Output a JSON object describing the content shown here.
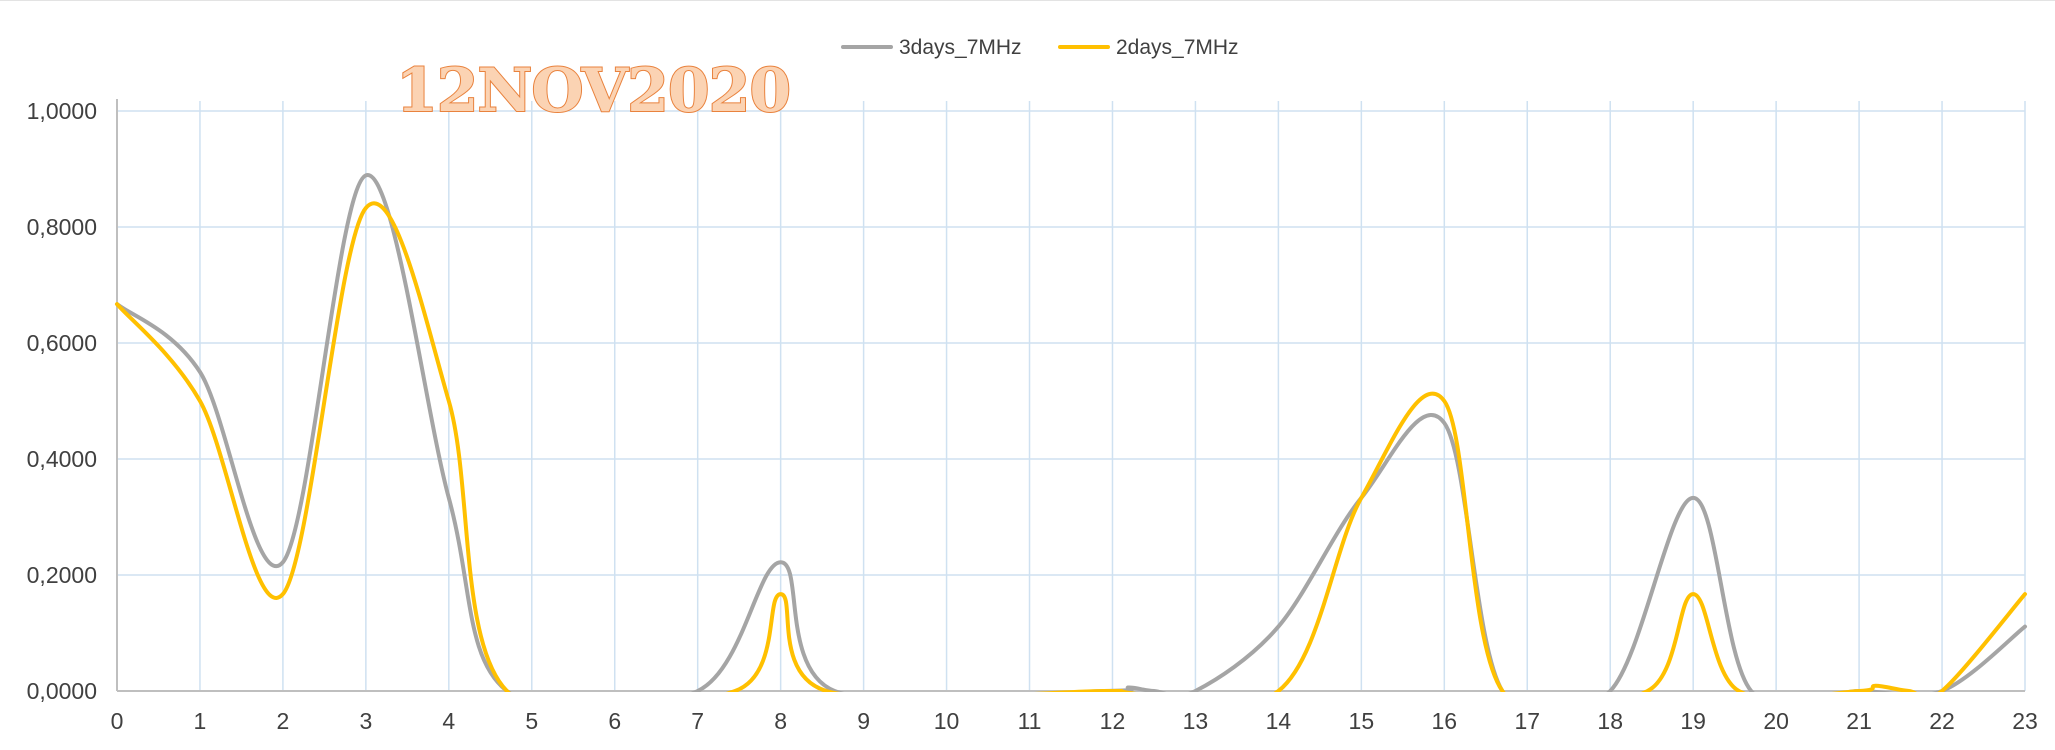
{
  "chart_data": {
    "type": "line",
    "title": "",
    "annotation": "12NOV2020",
    "xlabel": "",
    "ylabel": "",
    "x": [
      0,
      1,
      2,
      3,
      4,
      5,
      6,
      7,
      8,
      9,
      10,
      11,
      12,
      13,
      14,
      15,
      16,
      17,
      18,
      19,
      20,
      21,
      22,
      23
    ],
    "x_tick_labels": [
      "0",
      "1",
      "2",
      "3",
      "4",
      "5",
      "6",
      "7",
      "8",
      "9",
      "10",
      "11",
      "12",
      "13",
      "14",
      "15",
      "16",
      "17",
      "18",
      "19",
      "20",
      "21",
      "22",
      "23"
    ],
    "xlim": [
      0,
      23
    ],
    "ylim": [
      0,
      1
    ],
    "y_ticks": [
      0,
      0.2,
      0.4,
      0.6,
      0.8,
      1.0
    ],
    "y_tick_labels": [
      "0,0000",
      "0,2000",
      "0,4000",
      "0,6000",
      "0,8000",
      "1,0000"
    ],
    "grid": true,
    "smoothed": true,
    "legend_position": "top-center",
    "series": [
      {
        "name": "3days_7MHz",
        "color": "#a5a5a5",
        "values": [
          [
            0,
            0.667
          ],
          [
            1,
            0.55
          ],
          [
            2,
            0.222
          ],
          [
            3,
            0.889
          ],
          [
            4,
            0.333
          ],
          [
            4.7,
            0.0
          ],
          [
            7.0,
            0.0
          ],
          [
            8,
            0.222
          ],
          [
            8.65,
            0.0
          ],
          [
            11.9,
            0.0
          ],
          [
            12.2,
            0.006
          ],
          [
            12.5,
            0.0
          ],
          [
            13,
            0.0
          ],
          [
            14,
            0.111
          ],
          [
            15,
            0.333
          ],
          [
            16,
            0.462
          ],
          [
            16.7,
            0.0
          ],
          [
            18.0,
            0.0
          ],
          [
            19,
            0.333
          ],
          [
            19.7,
            0.0
          ],
          [
            21.0,
            0.0
          ],
          [
            22,
            0.0
          ],
          [
            23,
            0.111
          ]
        ]
      },
      {
        "name": "2days_7MHz",
        "color": "#ffc000",
        "values": [
          [
            0,
            0.667
          ],
          [
            1,
            0.5
          ],
          [
            2,
            0.167
          ],
          [
            3,
            0.833
          ],
          [
            4,
            0.5
          ],
          [
            4.7,
            0.0
          ],
          [
            7.45,
            0.0
          ],
          [
            8,
            0.167
          ],
          [
            8.55,
            0.0
          ],
          [
            11.9,
            0.0
          ],
          [
            12,
            0.0
          ],
          [
            14.0,
            0.0
          ],
          [
            15,
            0.333
          ],
          [
            16,
            0.5
          ],
          [
            16.7,
            0.0
          ],
          [
            18.45,
            0.0
          ],
          [
            19,
            0.167
          ],
          [
            19.55,
            0.0
          ],
          [
            21.0,
            0.0
          ],
          [
            21.2,
            0.009
          ],
          [
            21.6,
            0.0
          ],
          [
            22,
            0.0
          ],
          [
            23,
            0.167
          ]
        ]
      }
    ]
  }
}
